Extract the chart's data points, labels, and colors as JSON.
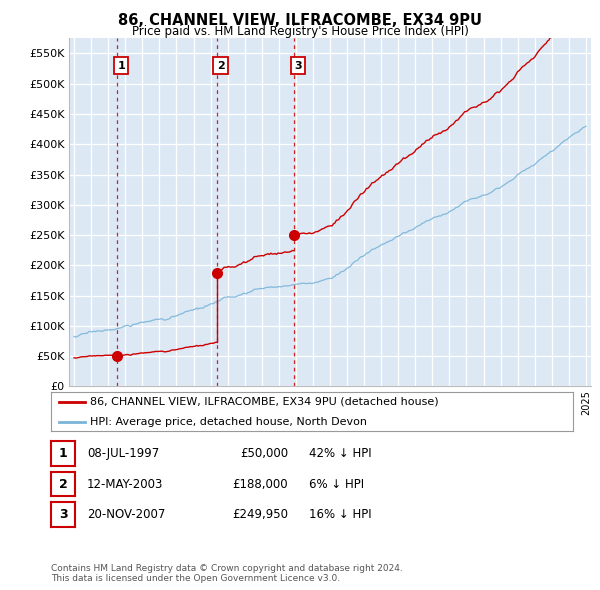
{
  "title": "86, CHANNEL VIEW, ILFRACOMBE, EX34 9PU",
  "subtitle": "Price paid vs. HM Land Registry's House Price Index (HPI)",
  "ylim": [
    0,
    575000
  ],
  "xlim_start": 1994.7,
  "xlim_end": 2025.3,
  "sale_dates": [
    1997.53,
    2003.36,
    2007.9
  ],
  "sale_prices": [
    50000,
    188000,
    249950
  ],
  "sale_labels": [
    "1",
    "2",
    "3"
  ],
  "hpi_color": "#7ab4d8",
  "price_color": "#cc0000",
  "vline_color": "#cc0000",
  "legend_entries": [
    "86, CHANNEL VIEW, ILFRACOMBE, EX34 9PU (detached house)",
    "HPI: Average price, detached house, North Devon"
  ],
  "table_data": [
    [
      "1",
      "08-JUL-1997",
      "£50,000",
      "42% ↓ HPI"
    ],
    [
      "2",
      "12-MAY-2003",
      "£188,000",
      "6% ↓ HPI"
    ],
    [
      "3",
      "20-NOV-2007",
      "£249,950",
      "16% ↓ HPI"
    ]
  ],
  "footnote": "Contains HM Land Registry data © Crown copyright and database right 2024.\nThis data is licensed under the Open Government Licence v3.0.",
  "plot_bg_color": "#dce9f5"
}
